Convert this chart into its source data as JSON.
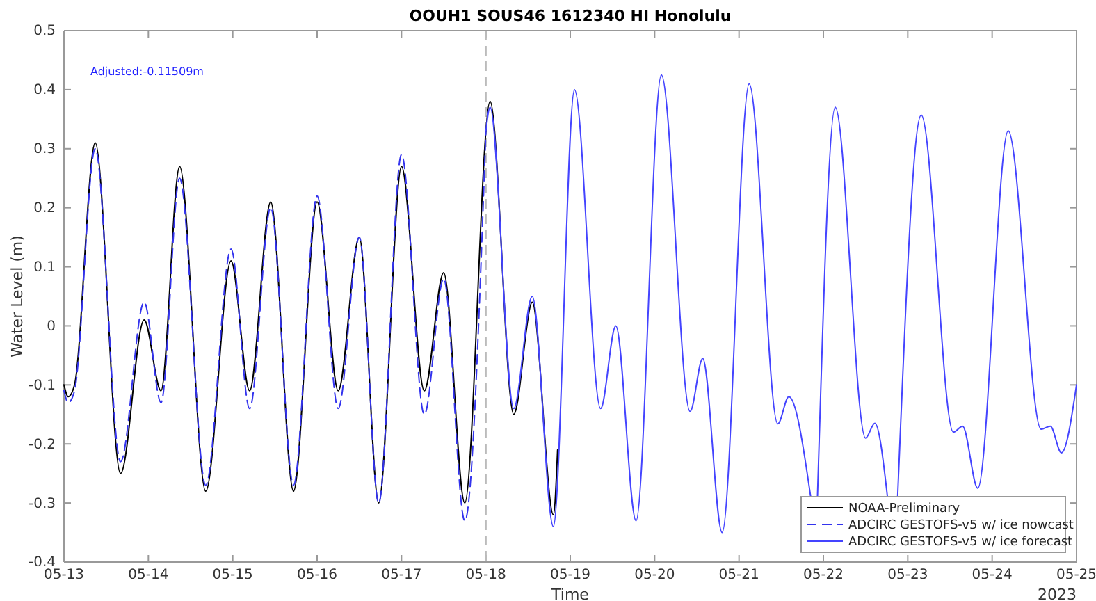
{
  "chart_data": {
    "type": "line",
    "title": "OOUH1 SOUS46 1612340 HI Honolulu",
    "xlabel": "Time",
    "ylabel": "Water Level (m)",
    "annotations": [
      "Adjusted:-0.11509m",
      "2023"
    ],
    "xlim": [
      "2023-05-13",
      "2023-05-25"
    ],
    "xticks": [
      {
        "value": "2023-05-13",
        "label": "05-13"
      },
      {
        "value": "2023-05-14",
        "label": "05-14"
      },
      {
        "value": "2023-05-15",
        "label": "05-15"
      },
      {
        "value": "2023-05-16",
        "label": "05-16"
      },
      {
        "value": "2023-05-17",
        "label": "05-17"
      },
      {
        "value": "2023-05-18",
        "label": "05-18"
      },
      {
        "value": "2023-05-19",
        "label": "05-19"
      },
      {
        "value": "2023-05-20",
        "label": "05-20"
      },
      {
        "value": "2023-05-21",
        "label": "05-21"
      },
      {
        "value": "2023-05-22",
        "label": "05-22"
      },
      {
        "value": "2023-05-23",
        "label": "05-23"
      },
      {
        "value": "2023-05-24",
        "label": "05-24"
      },
      {
        "value": "2023-05-25",
        "label": "05-25"
      }
    ],
    "ylim": [
      -0.4,
      0.5
    ],
    "yticks": [
      -0.4,
      -0.3,
      -0.2,
      -0.1,
      0,
      0.1,
      0.2,
      0.3,
      0.4,
      0.5
    ],
    "grid": false,
    "legend": "bottom right",
    "ref_lines": [
      {
        "axis": "x",
        "value": "2023-05-18",
        "color": "#bbbbbb",
        "line_style": "dashed"
      }
    ],
    "series": [
      {
        "name": "NOAA-Preliminary",
        "color": "#000000",
        "line_style": "solid",
        "x": [
          "2023-05-13T00:00",
          "2023-05-13T01:12",
          "2023-05-13T03:00",
          "2023-05-13T08:53",
          "2023-05-13T16:05",
          "2023-05-13T22:48",
          "2023-05-14T03:36",
          "2023-05-14T08:53",
          "2023-05-14T16:19",
          "2023-05-14T23:31",
          "2023-05-15T04:48",
          "2023-05-15T10:48",
          "2023-05-15T17:17",
          "2023-05-16T00:00",
          "2023-05-16T06:00",
          "2023-05-16T12:00",
          "2023-05-16T17:31",
          "2023-05-17T00:00",
          "2023-05-17T06:29",
          "2023-05-17T12:00",
          "2023-05-17T18:00",
          "2023-05-18T01:12",
          "2023-05-18T07:55",
          "2023-05-18T13:12",
          "2023-05-18T19:12",
          "2023-05-18T20:24"
        ],
        "values": [
          -0.1,
          -0.12,
          -0.1,
          0.31,
          -0.25,
          0.01,
          -0.11,
          0.27,
          -0.28,
          0.11,
          -0.11,
          0.21,
          -0.28,
          0.21,
          -0.11,
          0.15,
          -0.3,
          0.27,
          -0.11,
          0.09,
          -0.3,
          0.38,
          -0.15,
          0.04,
          -0.32,
          -0.21
        ]
      },
      {
        "name": "ADCIRC GESTOFS-v5 w/ ice nowcast",
        "color": "#3333ee",
        "line_style": "dashed",
        "x": [
          "2023-05-13T00:00",
          "2023-05-13T01:12",
          "2023-05-13T03:00",
          "2023-05-13T08:53",
          "2023-05-13T16:05",
          "2023-05-13T22:48",
          "2023-05-14T03:36",
          "2023-05-14T08:53",
          "2023-05-14T16:19",
          "2023-05-14T23:31",
          "2023-05-15T04:48",
          "2023-05-15T10:48",
          "2023-05-15T17:17",
          "2023-05-16T00:00",
          "2023-05-16T06:00",
          "2023-05-16T12:00",
          "2023-05-16T17:31",
          "2023-05-17T00:00",
          "2023-05-17T06:29",
          "2023-05-17T12:00",
          "2023-05-17T18:00",
          "2023-05-18T00:00"
        ],
        "values": [
          -0.11,
          -0.13,
          -0.11,
          0.3,
          -0.23,
          0.04,
          -0.13,
          0.25,
          -0.27,
          0.13,
          -0.14,
          0.2,
          -0.27,
          0.22,
          -0.14,
          0.15,
          -0.3,
          0.29,
          -0.15,
          0.08,
          -0.33,
          0.33
        ]
      },
      {
        "name": "ADCIRC GESTOFS-v5 w/ ice forecast",
        "color": "#4444ff",
        "line_style": "solid",
        "x": [
          "2023-05-18T00:00",
          "2023-05-18T01:12",
          "2023-05-18T07:55",
          "2023-05-18T13:12",
          "2023-05-18T19:12",
          "2023-05-19T01:12",
          "2023-05-19T08:38",
          "2023-05-19T12:58",
          "2023-05-19T18:43",
          "2023-05-20T01:55",
          "2023-05-20T10:05",
          "2023-05-20T13:41",
          "2023-05-20T19:12",
          "2023-05-21T02:53",
          "2023-05-21T11:02",
          "2023-05-21T14:10",
          "2023-05-21T20:24",
          "2023-05-21T21:36",
          "2023-05-21T22:19",
          "2023-05-22T03:22",
          "2023-05-22T12:00",
          "2023-05-22T14:38",
          "2023-05-22T18:14",
          "2023-05-22T19:30",
          "2023-05-22T21:07",
          "2023-05-23T03:50",
          "2023-05-23T12:58",
          "2023-05-23T15:36",
          "2023-05-23T19:55",
          "2023-05-24T04:34",
          "2023-05-24T13:55",
          "2023-05-24T16:34",
          "2023-05-24T19:41",
          "2023-05-25T00:00"
        ],
        "values": [
          0.33,
          0.37,
          -0.14,
          0.05,
          -0.34,
          0.4,
          -0.14,
          0.0,
          -0.33,
          0.425,
          -0.145,
          -0.055,
          -0.35,
          0.41,
          -0.166,
          -0.12,
          -0.29,
          null,
          -0.29,
          0.37,
          -0.19,
          -0.165,
          -0.29,
          null,
          -0.29,
          0.357,
          -0.18,
          -0.17,
          -0.275,
          0.33,
          -0.175,
          -0.17,
          -0.215,
          -0.1
        ]
      }
    ]
  }
}
